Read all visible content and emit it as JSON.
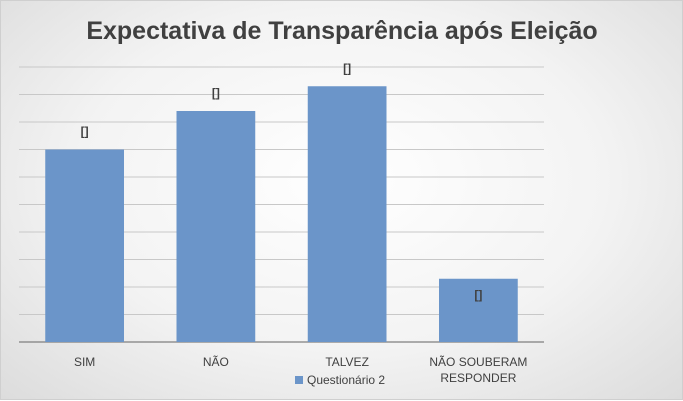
{
  "chart_data": {
    "type": "bar",
    "title": "Expectativa de Transparência após Eleição",
    "categories": [
      [
        "SIM"
      ],
      [
        "NÃO"
      ],
      [
        "TALVEZ"
      ],
      [
        "NÃO SOUBERAM",
        "RESPONDER"
      ]
    ],
    "series": [
      {
        "name": "Questionário 2",
        "values": [
          35,
          42,
          46.5,
          11.5
        ],
        "color": "#6b95c9"
      }
    ],
    "data_labels": [
      "[]",
      "[]",
      "[]",
      "[]"
    ],
    "ylim": [
      0,
      50
    ],
    "grid": true,
    "legend": "bottom"
  }
}
